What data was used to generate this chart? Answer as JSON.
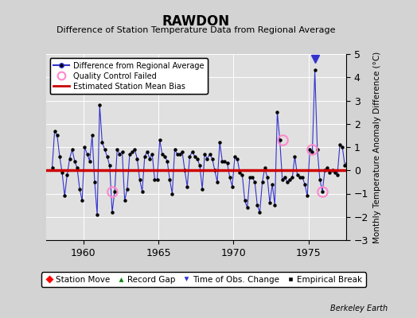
{
  "title": "RAWDON",
  "subtitle": "Difference of Station Temperature Data from Regional Average",
  "ylabel_right": "Monthly Temperature Anomaly Difference (°C)",
  "credit": "Berkeley Earth",
  "bias": 0.0,
  "ylim": [
    -3,
    5
  ],
  "xlim": [
    1957.5,
    1977.5
  ],
  "xticks": [
    1960,
    1965,
    1970,
    1975
  ],
  "yticks": [
    -3,
    -2,
    -1,
    0,
    1,
    2,
    3,
    4,
    5
  ],
  "bg_color": "#d3d3d3",
  "plot_bg_color": "#e0e0e0",
  "line_color": "#3333cc",
  "bias_color": "#cc0000",
  "qc_color": "#ff88cc",
  "grid_color": "#ffffff",
  "data_x": [
    1957.917,
    1958.083,
    1958.25,
    1958.417,
    1958.583,
    1958.75,
    1958.917,
    1959.083,
    1959.25,
    1959.417,
    1959.583,
    1959.75,
    1959.917,
    1960.083,
    1960.25,
    1960.417,
    1960.583,
    1960.75,
    1960.917,
    1961.083,
    1961.25,
    1961.417,
    1961.583,
    1961.75,
    1961.917,
    1962.083,
    1962.25,
    1962.417,
    1962.583,
    1962.75,
    1962.917,
    1963.083,
    1963.25,
    1963.417,
    1963.583,
    1963.75,
    1963.917,
    1964.083,
    1964.25,
    1964.417,
    1964.583,
    1964.75,
    1964.917,
    1965.083,
    1965.25,
    1965.417,
    1965.583,
    1965.75,
    1965.917,
    1966.083,
    1966.25,
    1966.417,
    1966.583,
    1966.75,
    1966.917,
    1967.083,
    1967.25,
    1967.417,
    1967.583,
    1967.75,
    1967.917,
    1968.083,
    1968.25,
    1968.417,
    1968.583,
    1968.75,
    1968.917,
    1969.083,
    1969.25,
    1969.417,
    1969.583,
    1969.75,
    1969.917,
    1970.083,
    1970.25,
    1970.417,
    1970.583,
    1970.75,
    1970.917,
    1971.083,
    1971.25,
    1971.417,
    1971.583,
    1971.75,
    1971.917,
    1972.083,
    1972.25,
    1972.417,
    1972.583,
    1972.75,
    1972.917,
    1973.083,
    1973.25,
    1973.417,
    1973.583,
    1973.75,
    1973.917,
    1974.083,
    1974.25,
    1974.417,
    1974.583,
    1974.75,
    1974.917,
    1975.083,
    1975.25,
    1975.417,
    1975.583,
    1975.75,
    1975.917,
    1976.083,
    1976.25,
    1976.417,
    1976.583,
    1976.75,
    1976.917,
    1977.083,
    1977.25,
    1977.417,
    1977.583
  ],
  "data_y": [
    0.1,
    1.7,
    1.5,
    0.6,
    -0.1,
    -1.1,
    -0.2,
    0.5,
    0.9,
    0.4,
    0.1,
    -0.8,
    -1.3,
    1.0,
    0.7,
    0.4,
    1.5,
    -0.5,
    -1.9,
    2.8,
    1.2,
    0.9,
    0.6,
    0.2,
    -1.8,
    -0.9,
    0.9,
    0.7,
    0.8,
    -1.3,
    -0.8,
    0.7,
    0.8,
    0.9,
    0.5,
    -0.4,
    -0.9,
    0.6,
    0.8,
    0.5,
    0.7,
    -0.4,
    -0.4,
    1.3,
    0.7,
    0.6,
    0.4,
    -0.4,
    -1.0,
    0.9,
    0.7,
    0.7,
    0.8,
    0.0,
    -0.7,
    0.6,
    0.8,
    0.6,
    0.5,
    0.2,
    -0.8,
    0.7,
    0.5,
    0.7,
    0.5,
    0.0,
    -0.5,
    1.2,
    0.4,
    0.4,
    0.3,
    -0.3,
    -0.7,
    0.6,
    0.5,
    -0.1,
    -0.2,
    -1.3,
    -1.6,
    -0.3,
    -0.3,
    -0.5,
    -1.5,
    -1.8,
    -0.5,
    0.1,
    -0.3,
    -1.4,
    -0.6,
    -1.5,
    2.5,
    1.3,
    -0.4,
    -0.3,
    -0.5,
    -0.4,
    -0.3,
    0.6,
    -0.2,
    -0.3,
    -0.3,
    -0.6,
    -1.1,
    0.9,
    0.8,
    4.3,
    0.9,
    -0.4,
    -0.9,
    0.0,
    0.1,
    -0.1,
    0.0,
    -0.1,
    -0.2,
    1.1,
    1.0,
    0.2,
    0.3
  ],
  "qc_points_x": [
    1961.917,
    1973.25,
    1975.25,
    1975.917
  ],
  "qc_points_y": [
    -0.9,
    1.3,
    0.9,
    -0.9
  ],
  "time_of_obs_x": [
    1975.417
  ],
  "time_of_obs_y": [
    4.3
  ]
}
